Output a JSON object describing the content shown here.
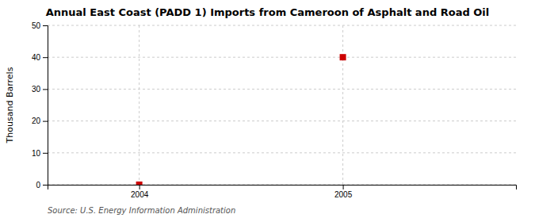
{
  "chart_data": {
    "type": "scatter",
    "title": "Annual East Coast (PADD 1) Imports from Cameroon of Asphalt and Road Oil",
    "ylabel": "Thousand Barrels",
    "annotations": [
      "Source: U.S. Energy Information Administration"
    ],
    "x": [
      2004,
      2005
    ],
    "values": [
      0,
      40
    ],
    "color": "#cc0000",
    "marker": "square",
    "xlim": [
      2003.55,
      2005.85
    ],
    "ylim": [
      0,
      50
    ],
    "xticks": [
      2004,
      2005
    ],
    "yticks": [
      0,
      10,
      20,
      30,
      40,
      50
    ],
    "grid": true
  }
}
